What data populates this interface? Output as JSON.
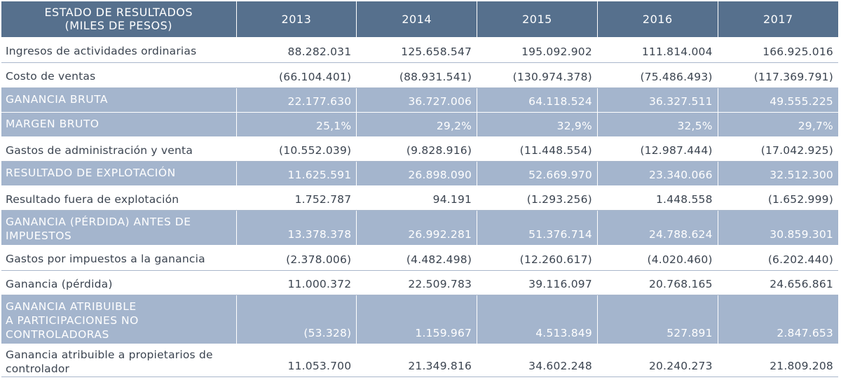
{
  "header": {
    "title_line1": "ESTADO DE RESULTADOS",
    "title_line2": "(MILES DE PESOS)",
    "years": [
      "2013",
      "2014",
      "2015",
      "2016",
      "2017"
    ]
  },
  "rows": [
    {
      "label": "Ingresos de actividades ordinarias",
      "values": [
        "88.282.031",
        "125.658.547",
        "195.092.902",
        "111.814.004",
        "166.925.016"
      ]
    },
    {
      "label": "Costo de ventas",
      "values": [
        "(66.104.401)",
        "(88.931.541)",
        "(130.974.378)",
        "(75.486.493)",
        "(117.369.791)"
      ]
    },
    {
      "label": "GANANCIA BRUTA",
      "values": [
        "22.177.630",
        "36.727.006",
        "64.118.524",
        "36.327.511",
        "49.555.225"
      ]
    },
    {
      "label": "MARGEN BRUTO",
      "values": [
        "25,1%",
        "29,2%",
        "32,9%",
        "32,5%",
        "29,7%"
      ]
    },
    {
      "label": "Gastos de administración y venta",
      "values": [
        "(10.552.039)",
        "(9.828.916)",
        "(11.448.554)",
        "(12.987.444)",
        "(17.042.925)"
      ]
    },
    {
      "label": "RESULTADO DE EXPLOTACIÓN",
      "values": [
        "11.625.591",
        "26.898.090",
        "52.669.970",
        "23.340.066",
        "32.512.300"
      ]
    },
    {
      "label": "Resultado fuera de explotación",
      "values": [
        "1.752.787",
        "94.191",
        "(1.293.256)",
        "1.448.558",
        "(1.652.999)"
      ]
    },
    {
      "label_line1": "GANANCIA (PÉRDIDA) ANTES DE",
      "label_line2": "IMPUESTOS",
      "values": [
        "13.378.378",
        "26.992.281",
        "51.376.714",
        "24.788.624",
        "30.859.301"
      ]
    },
    {
      "label": "Gastos por impuestos a la ganancia",
      "values": [
        "(2.378.006)",
        "(4.482.498)",
        "(12.260.617)",
        "(4.020.460)",
        "(6.202.440)"
      ]
    },
    {
      "label": "Ganancia (pérdida)",
      "values": [
        "11.000.372",
        "22.509.783",
        "39.116.097",
        "20.768.165",
        "24.656.861"
      ]
    },
    {
      "label_line1": "GANANCIA ATRIBUIBLE",
      "label_line2": "A PARTICIPACIONES NO",
      "label_line3": "CONTROLADORAS",
      "values": [
        "(53.328)",
        "1.159.967",
        "4.513.849",
        "527.891",
        "2.847.653"
      ]
    },
    {
      "label_line1": "Ganancia atribuible a propietarios de",
      "label_line2": "controlador",
      "values": [
        "11.053.700",
        "21.349.816",
        "34.602.248",
        "20.240.273",
        "21.809.208"
      ]
    }
  ],
  "colors": {
    "header_bg": "#56708d",
    "highlight_bg": "#a4b5cd",
    "text": "#3b4450"
  }
}
